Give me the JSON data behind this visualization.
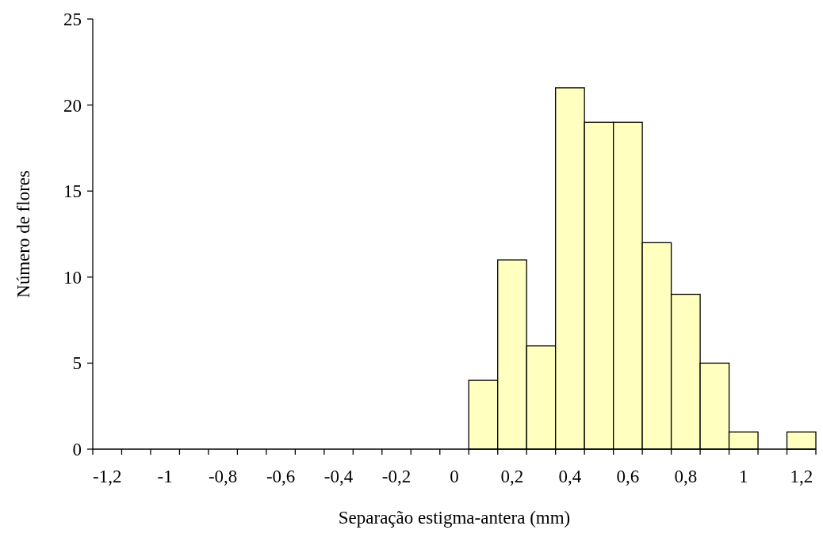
{
  "chart_data": {
    "type": "bar",
    "xlabel": "Separação estigma-antera (mm)",
    "ylabel": "Número de flores",
    "categories": [
      "-1,2",
      null,
      "-1",
      null,
      "-0,8",
      null,
      "-0,6",
      null,
      "-0,4",
      null,
      "-0,2",
      null,
      "0",
      null,
      "0,2",
      null,
      "0,4",
      null,
      "0,6",
      null,
      "0,8",
      null,
      "1",
      null,
      "1,2"
    ],
    "values": [
      0,
      0,
      0,
      0,
      0,
      0,
      0,
      0,
      0,
      0,
      0,
      0,
      0,
      4,
      11,
      6,
      21,
      19,
      19,
      12,
      9,
      5,
      1,
      0,
      1
    ],
    "color": "#ffffc0",
    "ylim": [
      0,
      25
    ],
    "yticks": [
      0,
      5,
      10,
      15,
      20,
      25
    ]
  }
}
